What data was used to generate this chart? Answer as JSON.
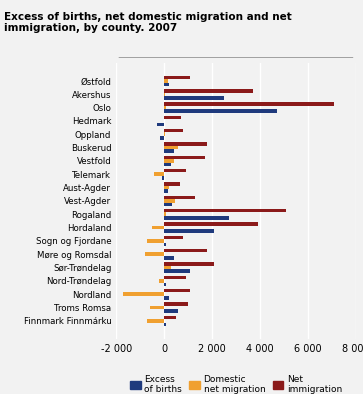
{
  "title": "Excess of births, net domestic migration and net\nimmigration, by county. 2007",
  "counties": [
    "Østfold",
    "Akershus",
    "Oslo",
    "Hedmark",
    "Oppland",
    "Buskerud",
    "Vestfold",
    "Telemark",
    "Aust-Agder",
    "Vest-Agder",
    "Rogaland",
    "Hordaland",
    "Sogn og Fjordane",
    "Møre og Romsdal",
    "Sør-Trøndelag",
    "Nord-Trøndelag",
    "Nordland",
    "Troms Romsa",
    "Finnmark Finnmárku"
  ],
  "excess_births": [
    200,
    2500,
    4700,
    -300,
    -150,
    400,
    300,
    -100,
    150,
    350,
    2700,
    2100,
    100,
    400,
    1100,
    100,
    200,
    600,
    100
  ],
  "domestic_net_migration": [
    150,
    50,
    100,
    0,
    50,
    600,
    400,
    -400,
    200,
    450,
    100,
    -500,
    -700,
    -800,
    300,
    -200,
    -1700,
    -600,
    -700
  ],
  "net_immigration": [
    1100,
    3700,
    7100,
    700,
    800,
    1800,
    1700,
    900,
    650,
    1300,
    5100,
    3900,
    800,
    1800,
    2100,
    900,
    1100,
    1000,
    500
  ],
  "colors": {
    "excess_births": "#1f3a7d",
    "domestic_net_migration": "#f0a030",
    "net_immigration": "#8b1a1a"
  },
  "xlim": [
    -2000,
    8000
  ],
  "xticks": [
    -2000,
    0,
    2000,
    4000,
    6000,
    8000
  ],
  "xtick_labels": [
    "-2 000",
    "0",
    "2 000",
    "4 000",
    "6 000",
    "8 000"
  ],
  "bar_height": 0.27,
  "legend_labels": [
    "Excess\nof births",
    "Domestic\nnet migration",
    "Net\nimmigration"
  ],
  "background_color": "#f2f2f2",
  "grid_color": "#ffffff"
}
